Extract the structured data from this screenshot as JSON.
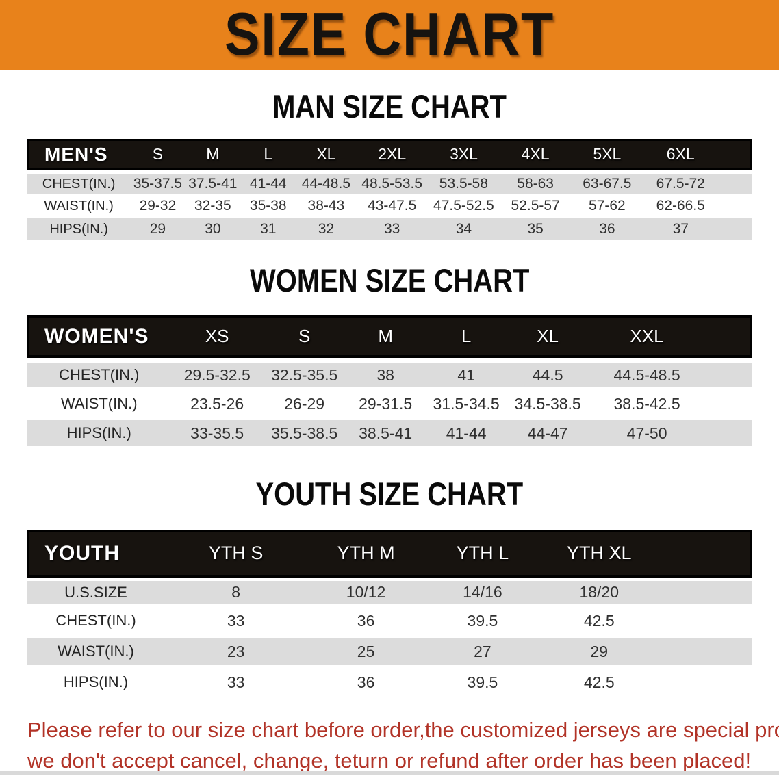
{
  "banner": {
    "title": "SIZE CHART",
    "bg_color": "#E8821B",
    "text_color": "#161310"
  },
  "men": {
    "heading": "MAN SIZE CHART",
    "header": {
      "label": "MEN'S",
      "columns": [
        "S",
        "M",
        "L",
        "XL",
        "2XL",
        "3XL",
        "4XL",
        "5XL",
        "6XL"
      ]
    },
    "rows": [
      {
        "label": "CHEST(IN.)",
        "values": [
          "35-37.5",
          "37.5-41",
          "41-44",
          "44-48.5",
          "48.5-53.5",
          "53.5-58",
          "58-63",
          "63-67.5",
          "67.5-72"
        ]
      },
      {
        "label": "WAIST(IN.)",
        "values": [
          "29-32",
          "32-35",
          "35-38",
          "38-43",
          "43-47.5",
          "47.5-52.5",
          "52.5-57",
          "57-62",
          "62-66.5"
        ]
      },
      {
        "label": "HIPS(IN.)",
        "values": [
          "29",
          "30",
          "31",
          "32",
          "33",
          "34",
          "35",
          "36",
          "37"
        ]
      }
    ]
  },
  "women": {
    "heading": "WOMEN SIZE CHART",
    "header": {
      "label": "WOMEN'S",
      "columns": [
        "XS",
        "S",
        "M",
        "L",
        "XL",
        "XXL"
      ]
    },
    "rows": [
      {
        "label": "CHEST(IN.)",
        "values": [
          "29.5-32.5",
          "32.5-35.5",
          "38",
          "41",
          "44.5",
          "44.5-48.5"
        ]
      },
      {
        "label": "WAIST(IN.)",
        "values": [
          "23.5-26",
          "26-29",
          "29-31.5",
          "31.5-34.5",
          "34.5-38.5",
          "38.5-42.5"
        ]
      },
      {
        "label": "HIPS(IN.)",
        "values": [
          "33-35.5",
          "35.5-38.5",
          "38.5-41",
          "41-44",
          "44-47",
          "47-50"
        ]
      }
    ]
  },
  "youth": {
    "heading": "YOUTH SIZE CHART",
    "header": {
      "label": "YOUTH",
      "columns": [
        "YTH S",
        "YTH M",
        "YTH L",
        "YTH XL"
      ]
    },
    "rows": [
      {
        "label": "U.S.SIZE",
        "values": [
          "8",
          "10/12",
          "14/16",
          "18/20"
        ]
      },
      {
        "label": "CHEST(IN.)",
        "values": [
          "33",
          "36",
          "39.5",
          "42.5"
        ]
      },
      {
        "label": "WAIST(IN.)",
        "values": [
          "23",
          "25",
          "27",
          "29"
        ]
      },
      {
        "label": "HIPS(IN.)",
        "values": [
          "33",
          "36",
          "39.5",
          "42.5"
        ]
      }
    ]
  },
  "footer": {
    "line1": "Please refer to our size chart before order,the customized jerseys are special products,",
    "line2": "we don't accept cancel, change, teturn or refund after order has been placed!",
    "text_color": "#B23327"
  },
  "colors": {
    "row_shade": "#DCDCDC",
    "header_band": "#17130F"
  }
}
